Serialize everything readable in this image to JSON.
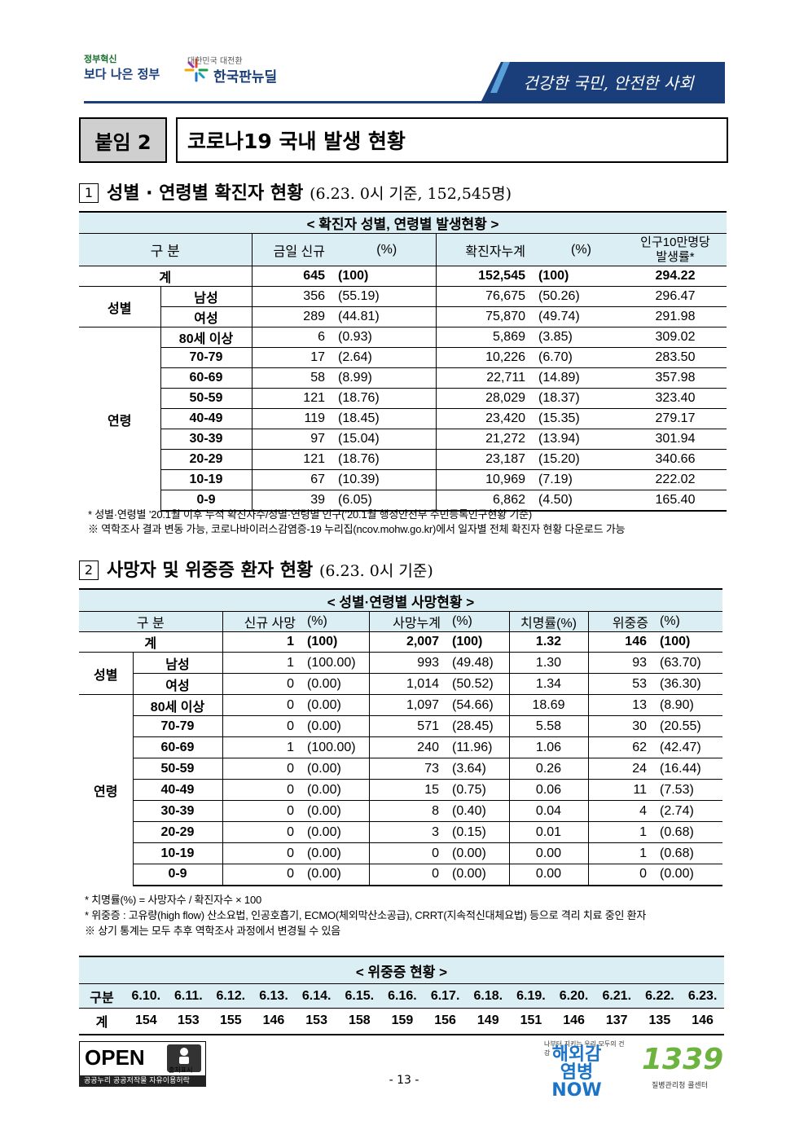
{
  "header": {
    "logo1_top": "정부혁신",
    "logo1_main": "보다 나은 정부",
    "logo2_top": "대한민국 대전환",
    "logo2_main": "한국판뉴딜",
    "slogan": "건강한 국민, 안전한 사회"
  },
  "attachment_label": "붙임 2",
  "page_title": "코로나19 국내 발생 현황",
  "section1": {
    "num": "1",
    "title": "성별 · 연령별 확진자 현황",
    "sub": "(6.23. 0시 기준, 152,545명)",
    "table_title": "< 확진자 성별, 연령별 발생현황 >",
    "headers": [
      "구 분",
      "금일 신규",
      "(%)",
      "확진자누계",
      "(%)",
      "인구10만명당",
      "발생률*"
    ],
    "total": {
      "label": "계",
      "new": "645",
      "new_pct": "(100)",
      "cum": "152,545",
      "cum_pct": "(100)",
      "rate": "294.22"
    },
    "sex_label": "성별",
    "sex": [
      {
        "label": "남성",
        "new": "356",
        "new_pct": "(55.19)",
        "cum": "76,675",
        "cum_pct": "(50.26)",
        "rate": "296.47"
      },
      {
        "label": "여성",
        "new": "289",
        "new_pct": "(44.81)",
        "cum": "75,870",
        "cum_pct": "(49.74)",
        "rate": "291.98"
      }
    ],
    "age_label": "연령",
    "age": [
      {
        "label": "80세 이상",
        "new": "6",
        "new_pct": "(0.93)",
        "cum": "5,869",
        "cum_pct": "(3.85)",
        "rate": "309.02"
      },
      {
        "label": "70-79",
        "new": "17",
        "new_pct": "(2.64)",
        "cum": "10,226",
        "cum_pct": "(6.70)",
        "rate": "283.50"
      },
      {
        "label": "60-69",
        "new": "58",
        "new_pct": "(8.99)",
        "cum": "22,711",
        "cum_pct": "(14.89)",
        "rate": "357.98"
      },
      {
        "label": "50-59",
        "new": "121",
        "new_pct": "(18.76)",
        "cum": "28,029",
        "cum_pct": "(18.37)",
        "rate": "323.40"
      },
      {
        "label": "40-49",
        "new": "119",
        "new_pct": "(18.45)",
        "cum": "23,420",
        "cum_pct": "(15.35)",
        "rate": "279.17"
      },
      {
        "label": "30-39",
        "new": "97",
        "new_pct": "(15.04)",
        "cum": "21,272",
        "cum_pct": "(13.94)",
        "rate": "301.94"
      },
      {
        "label": "20-29",
        "new": "121",
        "new_pct": "(18.76)",
        "cum": "23,187",
        "cum_pct": "(15.20)",
        "rate": "340.66"
      },
      {
        "label": "10-19",
        "new": "67",
        "new_pct": "(10.39)",
        "cum": "10,969",
        "cum_pct": "(7.19)",
        "rate": "222.02"
      },
      {
        "label": "0-9",
        "new": "39",
        "new_pct": "(6.05)",
        "cum": "6,862",
        "cum_pct": "(4.50)",
        "rate": "165.40"
      }
    ],
    "notes": [
      "* 성별·연령별 ’20.1월 이후 누적 확진자수/성별·연령별 인구(’20.1월 행정안전부 주민등록인구현황 기준)",
      "※ 역학조사 결과 변동 가능, 코로나바이러스감염증-19 누리집(ncov.mohw.go.kr)에서 일자별 전체 확진자 현황 다운로드 가능"
    ]
  },
  "section2": {
    "num": "2",
    "title": "사망자 및 위중증 환자 현황",
    "sub": "(6.23. 0시 기준)",
    "table_title": "< 성별·연령별 사망현황 >",
    "headers": [
      "구 분",
      "신규 사망",
      "(%)",
      "사망누계",
      "(%)",
      "치명률(%)",
      "위중증",
      "(%)"
    ],
    "total": {
      "label": "계",
      "new": "1",
      "new_pct": "(100)",
      "cum": "2,007",
      "cum_pct": "(100)",
      "fatality": "1.32",
      "severe": "146",
      "severe_pct": "(100)"
    },
    "sex_label": "성별",
    "sex": [
      {
        "label": "남성",
        "new": "1",
        "new_pct": "(100.00)",
        "cum": "993",
        "cum_pct": "(49.48)",
        "fatality": "1.30",
        "severe": "93",
        "severe_pct": "(63.70)"
      },
      {
        "label": "여성",
        "new": "0",
        "new_pct": "(0.00)",
        "cum": "1,014",
        "cum_pct": "(50.52)",
        "fatality": "1.34",
        "severe": "53",
        "severe_pct": "(36.30)"
      }
    ],
    "age_label": "연령",
    "age": [
      {
        "label": "80세 이상",
        "new": "0",
        "new_pct": "(0.00)",
        "cum": "1,097",
        "cum_pct": "(54.66)",
        "fatality": "18.69",
        "severe": "13",
        "severe_pct": "(8.90)"
      },
      {
        "label": "70-79",
        "new": "0",
        "new_pct": "(0.00)",
        "cum": "571",
        "cum_pct": "(28.45)",
        "fatality": "5.58",
        "severe": "30",
        "severe_pct": "(20.55)"
      },
      {
        "label": "60-69",
        "new": "1",
        "new_pct": "(100.00)",
        "cum": "240",
        "cum_pct": "(11.96)",
        "fatality": "1.06",
        "severe": "62",
        "severe_pct": "(42.47)"
      },
      {
        "label": "50-59",
        "new": "0",
        "new_pct": "(0.00)",
        "cum": "73",
        "cum_pct": "(3.64)",
        "fatality": "0.26",
        "severe": "24",
        "severe_pct": "(16.44)"
      },
      {
        "label": "40-49",
        "new": "0",
        "new_pct": "(0.00)",
        "cum": "15",
        "cum_pct": "(0.75)",
        "fatality": "0.06",
        "severe": "11",
        "severe_pct": "(7.53)"
      },
      {
        "label": "30-39",
        "new": "0",
        "new_pct": "(0.00)",
        "cum": "8",
        "cum_pct": "(0.40)",
        "fatality": "0.04",
        "severe": "4",
        "severe_pct": "(2.74)"
      },
      {
        "label": "20-29",
        "new": "0",
        "new_pct": "(0.00)",
        "cum": "3",
        "cum_pct": "(0.15)",
        "fatality": "0.01",
        "severe": "1",
        "severe_pct": "(0.68)"
      },
      {
        "label": "10-19",
        "new": "0",
        "new_pct": "(0.00)",
        "cum": "0",
        "cum_pct": "(0.00)",
        "fatality": "0.00",
        "severe": "1",
        "severe_pct": "(0.68)"
      },
      {
        "label": "0-9",
        "new": "0",
        "new_pct": "(0.00)",
        "cum": "0",
        "cum_pct": "(0.00)",
        "fatality": "0.00",
        "severe": "0",
        "severe_pct": "(0.00)"
      }
    ],
    "notes": [
      "* 치명률(%) = 사망자수 / 확진자수 × 100",
      "* 위중증 : 고유량(high flow) 산소요법, 인공호흡기, ECMO(체외막산소공급), CRRT(지속적신대체요법) 등으로 격리 치료 중인 환자",
      "※ 상기 통계는 모두 추후 역학조사 과정에서 변경될 수 있음"
    ],
    "severe_table": {
      "title": "< 위중증 현황 >",
      "row1_label": "구분",
      "row2_label": "계",
      "dates": [
        "6.10.",
        "6.11.",
        "6.12.",
        "6.13.",
        "6.14.",
        "6.15.",
        "6.16.",
        "6.17.",
        "6.18.",
        "6.19.",
        "6.20.",
        "6.21.",
        "6.22.",
        "6.23."
      ],
      "values": [
        "154",
        "153",
        "155",
        "146",
        "153",
        "158",
        "159",
        "156",
        "149",
        "151",
        "146",
        "137",
        "135",
        "146"
      ]
    }
  },
  "footer": {
    "open_text": "OPEN",
    "open_badge": "출처표시",
    "open_bar": "공공누리  공공저작물 자유이용허락",
    "page_number": "- 13 -",
    "overseas_small": "나부터 지키는 우리 모두의 건강",
    "overseas_logo": "해외감염병 NOW",
    "hotline": "1339",
    "hotline_sub": "질병관리청 콜센터"
  }
}
